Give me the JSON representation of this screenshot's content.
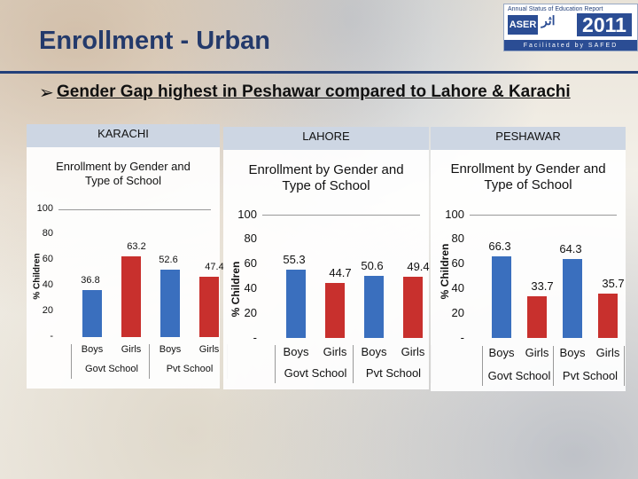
{
  "header": {
    "title": "Enrollment - Urban",
    "subtitle": "Gender Gap highest in Peshawar compared to  Lahore & Karachi"
  },
  "logo": {
    "top_text": "Annual Status of Education Report",
    "aser": "ASER",
    "urdu": "اثر",
    "year": "2011",
    "bottom_text": "Facilitated by SAFED"
  },
  "colors": {
    "bar_blue": "#3a6fbe",
    "bar_red": "#c8302d",
    "title_blue": "#243a6b"
  },
  "chart_data": [
    {
      "type": "bar",
      "panel_label": "KARACHI",
      "title": "Enrollment by Gender and Type of School",
      "ylabel": "% Children",
      "yticks": [
        "100",
        "80",
        "60",
        "40",
        "20",
        "-"
      ],
      "ylim": [
        0,
        100
      ],
      "categories": [
        "Boys",
        "Girls",
        "Boys",
        "Girls"
      ],
      "groups": [
        "Govt School",
        "Pvt School"
      ],
      "values": [
        36.8,
        63.2,
        52.6,
        47.4
      ]
    },
    {
      "type": "bar",
      "panel_label": "LAHORE",
      "title": "Enrollment by Gender and Type of School",
      "ylabel": "% Children",
      "yticks": [
        "100",
        "80",
        "60",
        "40",
        "20",
        "-"
      ],
      "ylim": [
        0,
        100
      ],
      "categories": [
        "Boys",
        "Girls",
        "Boys",
        "Girls"
      ],
      "groups": [
        "Govt School",
        "Pvt School"
      ],
      "values": [
        55.3,
        44.7,
        50.6,
        49.4
      ]
    },
    {
      "type": "bar",
      "panel_label": "PESHAWAR",
      "title": "Enrollment by Gender and Type of School",
      "ylabel": "% Children",
      "yticks": [
        "100",
        "80",
        "60",
        "40",
        "20",
        "-"
      ],
      "ylim": [
        0,
        100
      ],
      "categories": [
        "Boys",
        "Girls",
        "Boys",
        "Girls"
      ],
      "groups": [
        "Govt School",
        "Pvt School"
      ],
      "values": [
        66.3,
        33.7,
        64.3,
        35.7
      ]
    }
  ]
}
